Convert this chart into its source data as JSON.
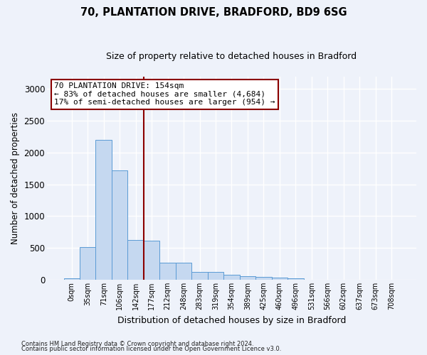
{
  "title1": "70, PLANTATION DRIVE, BRADFORD, BD9 6SG",
  "title2": "Size of property relative to detached houses in Bradford",
  "xlabel": "Distribution of detached houses by size in Bradford",
  "ylabel": "Number of detached properties",
  "categories": [
    "0sqm",
    "35sqm",
    "71sqm",
    "106sqm",
    "142sqm",
    "177sqm",
    "212sqm",
    "248sqm",
    "283sqm",
    "319sqm",
    "354sqm",
    "389sqm",
    "425sqm",
    "460sqm",
    "496sqm",
    "531sqm",
    "566sqm",
    "602sqm",
    "637sqm",
    "673sqm",
    "708sqm"
  ],
  "values": [
    20,
    510,
    2200,
    1720,
    630,
    620,
    270,
    270,
    125,
    120,
    75,
    55,
    40,
    35,
    25,
    5,
    5,
    2,
    2,
    2,
    2
  ],
  "bar_color": "#c5d8f0",
  "bar_edge_color": "#5b9bd5",
  "vline_x": 4.5,
  "vline_color": "#8b0000",
  "annotation_text": "70 PLANTATION DRIVE: 154sqm\n← 83% of detached houses are smaller (4,684)\n17% of semi-detached houses are larger (954) →",
  "annotation_box_color": "#ffffff",
  "annotation_box_edgecolor": "#8b0000",
  "ylim": [
    0,
    3200
  ],
  "yticks": [
    0,
    500,
    1000,
    1500,
    2000,
    2500,
    3000
  ],
  "footer1": "Contains HM Land Registry data © Crown copyright and database right 2024.",
  "footer2": "Contains public sector information licensed under the Open Government Licence v3.0.",
  "bg_color": "#eef2fa",
  "plot_bg_color": "#eef2fa",
  "grid_color": "#ffffff",
  "title1_fontsize": 10.5,
  "title2_fontsize": 9.0
}
